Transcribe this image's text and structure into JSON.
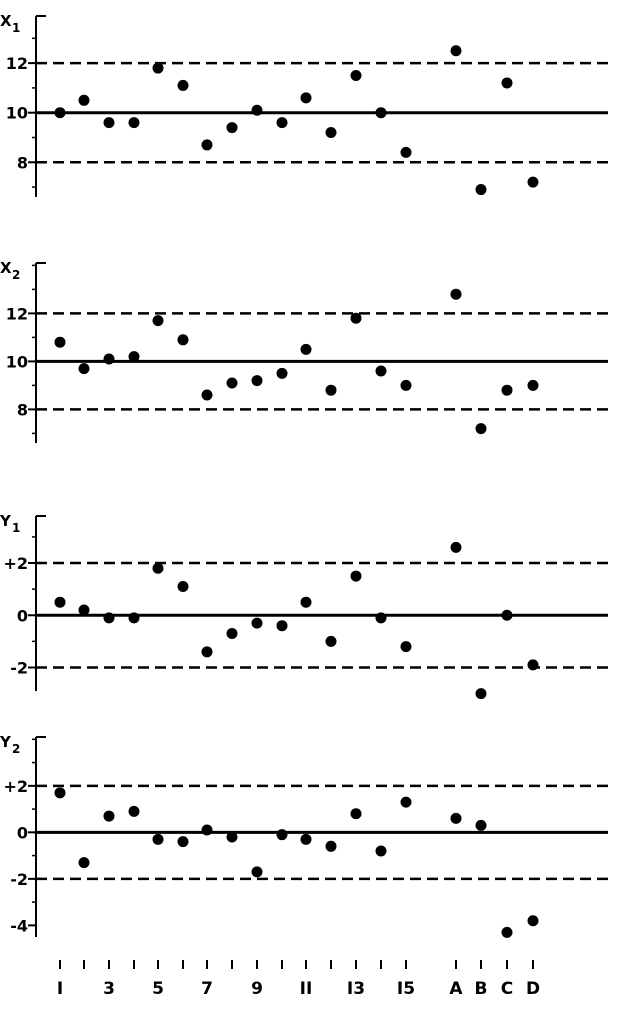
{
  "chart_data": [
    {
      "type": "scatter",
      "ylabel_main": "X",
      "ylabel_sub": "1",
      "ticks": [
        12,
        10,
        8
      ],
      "tick_labels": [
        "12",
        "10",
        "8"
      ],
      "ylim": [
        6.6,
        13.9
      ],
      "center": 10,
      "upper_limit": 12,
      "lower_limit": 8,
      "points": [
        {
          "x": "1",
          "y": 10.0
        },
        {
          "x": "2",
          "y": 10.5
        },
        {
          "x": "3",
          "y": 9.6
        },
        {
          "x": "4",
          "y": 9.6
        },
        {
          "x": "5",
          "y": 11.8
        },
        {
          "x": "6",
          "y": 11.1
        },
        {
          "x": "7",
          "y": 8.7
        },
        {
          "x": "8",
          "y": 9.4
        },
        {
          "x": "9",
          "y": 10.1
        },
        {
          "x": "10",
          "y": 9.6
        },
        {
          "x": "11",
          "y": 10.6
        },
        {
          "x": "12",
          "y": 9.2
        },
        {
          "x": "13",
          "y": 11.5
        },
        {
          "x": "14",
          "y": 10.0
        },
        {
          "x": "15",
          "y": 8.4
        },
        {
          "x": "A",
          "y": 12.5
        },
        {
          "x": "B",
          "y": 6.9
        },
        {
          "x": "C",
          "y": 11.2
        },
        {
          "x": "D",
          "y": 7.2
        }
      ]
    },
    {
      "type": "scatter",
      "ylabel_main": "X",
      "ylabel_sub": "2",
      "ticks": [
        12,
        10,
        8
      ],
      "tick_labels": [
        "12",
        "10",
        "8"
      ],
      "ylim": [
        6.6,
        14.1
      ],
      "center": 10,
      "upper_limit": 12,
      "lower_limit": 8,
      "points": [
        {
          "x": "1",
          "y": 10.8
        },
        {
          "x": "2",
          "y": 9.7
        },
        {
          "x": "3",
          "y": 10.1
        },
        {
          "x": "4",
          "y": 10.2
        },
        {
          "x": "5",
          "y": 11.7
        },
        {
          "x": "6",
          "y": 10.9
        },
        {
          "x": "7",
          "y": 8.6
        },
        {
          "x": "8",
          "y": 9.1
        },
        {
          "x": "9",
          "y": 9.2
        },
        {
          "x": "10",
          "y": 9.5
        },
        {
          "x": "11",
          "y": 10.5
        },
        {
          "x": "12",
          "y": 8.8
        },
        {
          "x": "13",
          "y": 11.8
        },
        {
          "x": "14",
          "y": 9.6
        },
        {
          "x": "15",
          "y": 9.0
        },
        {
          "x": "A",
          "y": 12.8
        },
        {
          "x": "B",
          "y": 7.2
        },
        {
          "x": "C",
          "y": 8.8
        },
        {
          "x": "D",
          "y": 9.0
        }
      ]
    },
    {
      "type": "scatter",
      "ylabel_main": "Y",
      "ylabel_sub": "1",
      "ticks": [
        2,
        0,
        -2
      ],
      "tick_labels": [
        "+2",
        "0",
        "-2"
      ],
      "ylim": [
        -2.9,
        3.8
      ],
      "center": 0,
      "upper_limit": 2,
      "lower_limit": -2,
      "points": [
        {
          "x": "1",
          "y": 0.5
        },
        {
          "x": "2",
          "y": 0.2
        },
        {
          "x": "3",
          "y": -0.1
        },
        {
          "x": "4",
          "y": -0.1
        },
        {
          "x": "5",
          "y": 1.8
        },
        {
          "x": "6",
          "y": 1.1
        },
        {
          "x": "7",
          "y": -1.4
        },
        {
          "x": "8",
          "y": -0.7
        },
        {
          "x": "9",
          "y": -0.3
        },
        {
          "x": "10",
          "y": -0.4
        },
        {
          "x": "11",
          "y": 0.5
        },
        {
          "x": "12",
          "y": -1.0
        },
        {
          "x": "13",
          "y": 1.5
        },
        {
          "x": "14",
          "y": -0.1
        },
        {
          "x": "15",
          "y": -1.2
        },
        {
          "x": "A",
          "y": 2.6
        },
        {
          "x": "B",
          "y": -3.0
        },
        {
          "x": "C",
          "y": 0.0
        },
        {
          "x": "D",
          "y": -1.9
        }
      ]
    },
    {
      "type": "scatter",
      "ylabel_main": "Y",
      "ylabel_sub": "2",
      "ticks": [
        2,
        0,
        -2,
        -4
      ],
      "tick_labels": [
        "+2",
        "0",
        "-2",
        "-4"
      ],
      "ylim": [
        -4.5,
        4.1
      ],
      "center": 0,
      "upper_limit": 2,
      "lower_limit": -2,
      "points": [
        {
          "x": "1",
          "y": 1.7
        },
        {
          "x": "2",
          "y": -1.3
        },
        {
          "x": "3",
          "y": 0.7
        },
        {
          "x": "4",
          "y": 0.9
        },
        {
          "x": "5",
          "y": -0.3
        },
        {
          "x": "6",
          "y": -0.4
        },
        {
          "x": "7",
          "y": 0.1
        },
        {
          "x": "8",
          "y": -0.2
        },
        {
          "x": "9",
          "y": -1.7
        },
        {
          "x": "10",
          "y": -0.1
        },
        {
          "x": "11",
          "y": -0.3
        },
        {
          "x": "12",
          "y": -0.6
        },
        {
          "x": "13",
          "y": 0.8
        },
        {
          "x": "14",
          "y": -0.8
        },
        {
          "x": "15",
          "y": 1.3
        },
        {
          "x": "A",
          "y": 0.6
        },
        {
          "x": "B",
          "y": 0.3
        },
        {
          "x": "C",
          "y": -4.3
        },
        {
          "x": "D",
          "y": -3.8
        }
      ]
    }
  ],
  "x_axis": {
    "categories": [
      "1",
      "2",
      "3",
      "4",
      "5",
      "6",
      "7",
      "8",
      "9",
      "10",
      "11",
      "12",
      "13",
      "14",
      "15",
      "A",
      "B",
      "C",
      "D"
    ],
    "labels": [
      {
        "cat": "1",
        "text": "I"
      },
      {
        "cat": "3",
        "text": "3"
      },
      {
        "cat": "5",
        "text": "5"
      },
      {
        "cat": "7",
        "text": "7"
      },
      {
        "cat": "9",
        "text": "9"
      },
      {
        "cat": "11",
        "text": "II"
      },
      {
        "cat": "13",
        "text": "I3"
      },
      {
        "cat": "15",
        "text": "I5"
      },
      {
        "cat": "A",
        "text": "A"
      },
      {
        "cat": "B",
        "text": "B"
      },
      {
        "cat": "C",
        "text": "C"
      },
      {
        "cat": "D",
        "text": "D"
      }
    ]
  }
}
